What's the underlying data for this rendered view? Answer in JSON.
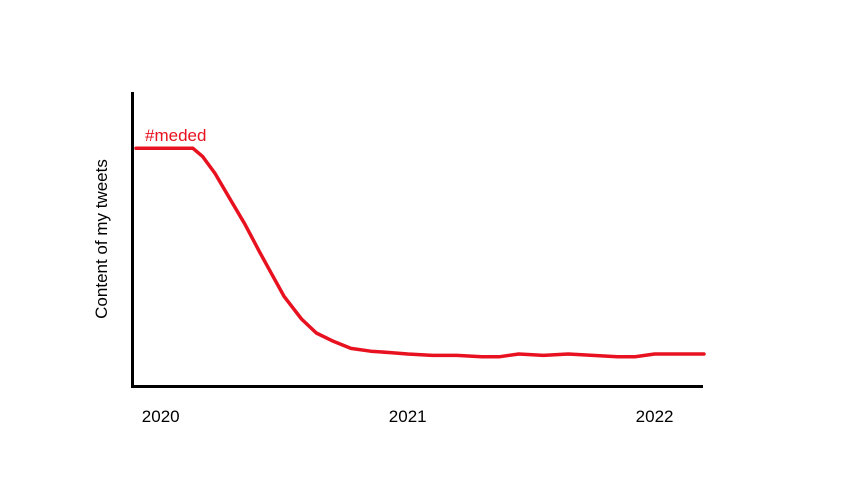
{
  "chart_data": {
    "type": "line",
    "title": "",
    "xlabel": "",
    "ylabel": "Content of my tweets",
    "x_ticks": [
      {
        "label": "2020",
        "x": 2020.0
      },
      {
        "label": "2021",
        "x": 2021.0
      },
      {
        "label": "2022",
        "x": 2022.0
      }
    ],
    "xlim": [
      2019.9,
      2022.2
    ],
    "ylim": [
      0,
      100
    ],
    "grid": false,
    "legend": "none",
    "series": [
      {
        "name": "#meded",
        "color": "#e8111f",
        "points": [
          [
            2019.9,
            81
          ],
          [
            2019.97,
            81
          ],
          [
            2020.05,
            81
          ],
          [
            2020.13,
            81
          ],
          [
            2020.17,
            78
          ],
          [
            2020.22,
            72
          ],
          [
            2020.28,
            63
          ],
          [
            2020.34,
            54
          ],
          [
            2020.4,
            44
          ],
          [
            2020.45,
            36
          ],
          [
            2020.5,
            28
          ],
          [
            2020.57,
            20
          ],
          [
            2020.63,
            15
          ],
          [
            2020.7,
            12
          ],
          [
            2020.77,
            9.5
          ],
          [
            2020.85,
            8.5
          ],
          [
            2020.93,
            8
          ],
          [
            2021.0,
            7.5
          ],
          [
            2021.1,
            7
          ],
          [
            2021.2,
            7
          ],
          [
            2021.3,
            6.5
          ],
          [
            2021.37,
            6.5
          ],
          [
            2021.45,
            7.5
          ],
          [
            2021.55,
            7
          ],
          [
            2021.65,
            7.5
          ],
          [
            2021.75,
            7
          ],
          [
            2021.85,
            6.5
          ],
          [
            2021.92,
            6.5
          ],
          [
            2022.0,
            7.5
          ],
          [
            2022.1,
            7.5
          ],
          [
            2022.2,
            7.5
          ]
        ]
      }
    ]
  }
}
